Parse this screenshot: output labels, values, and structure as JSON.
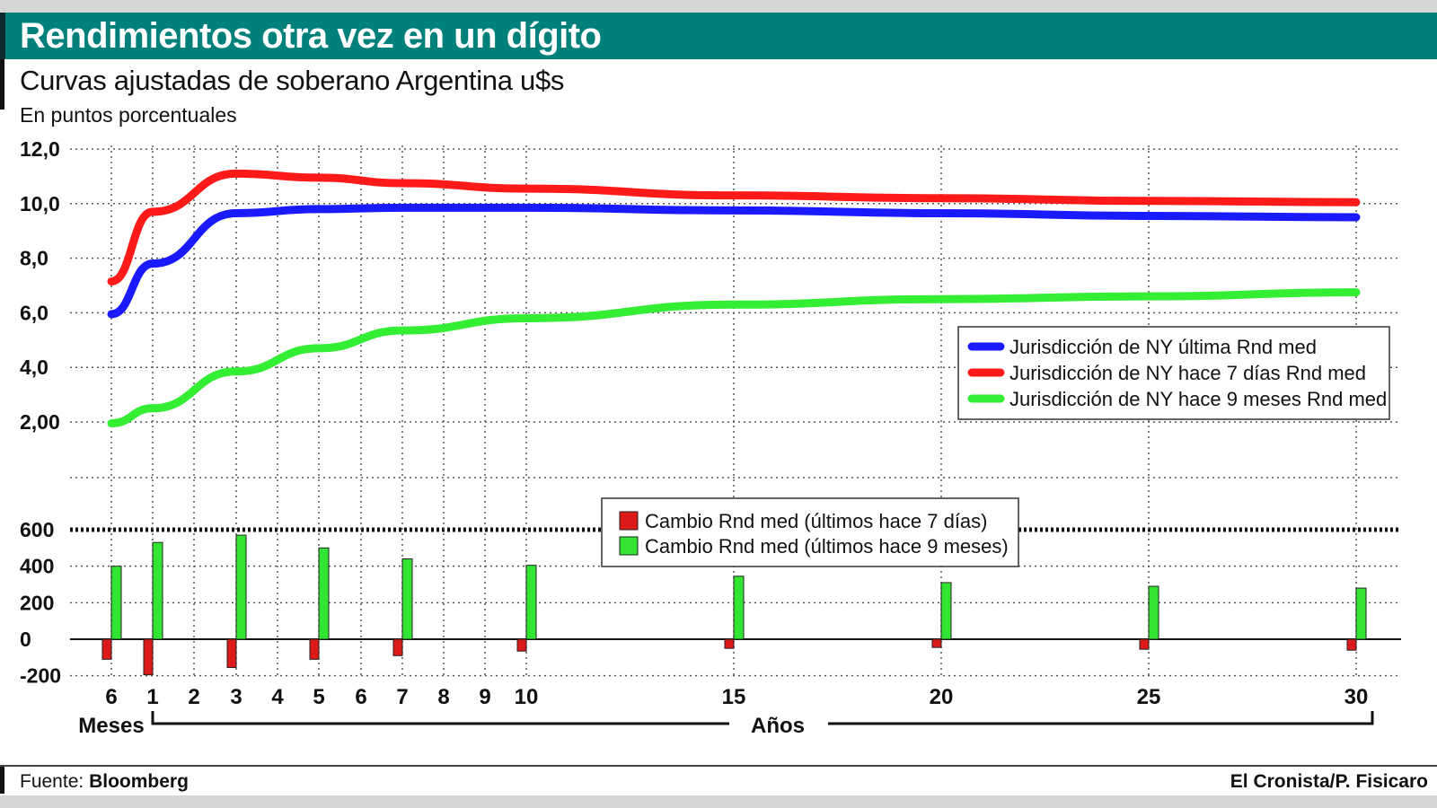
{
  "header": {
    "title": "Rendimientos otra vez en un dígito",
    "subtitle": "Curvas ajustadas de soberano Argentina u$s",
    "units": "En puntos porcentuales"
  },
  "footer": {
    "source_label": "Fuente:",
    "source_name": "Bloomberg",
    "credit": "El Cronista/P. Fisicaro"
  },
  "colors": {
    "title_bar": "#00807a",
    "blue": "#1a1aff",
    "red": "#ff1a1a",
    "green": "#33ee33",
    "bar_red": "#dd1a1a",
    "bar_green": "#33e533"
  },
  "chart_data": [
    {
      "type": "line",
      "x_categories": [
        "6",
        "1",
        "2",
        "3",
        "4",
        "5",
        "6",
        "7",
        "8",
        "9",
        "10",
        "15",
        "20",
        "25",
        "30"
      ],
      "x_group_labels": [
        "Meses",
        "Años"
      ],
      "y_ticks": [
        "12,0",
        "10,0",
        "8,0",
        "6,0",
        "4,0",
        "2,00"
      ],
      "ylim": [
        0,
        12
      ],
      "legend_position": "right",
      "series": [
        {
          "name": "Jurisdicción de NY última Rnd med",
          "color": "#1a1aff",
          "points": [
            [
              "6",
              5.95
            ],
            [
              "1",
              7.8
            ],
            [
              "3",
              9.65
            ],
            [
              "5",
              9.8
            ],
            [
              "7",
              9.85
            ],
            [
              "10",
              9.85
            ],
            [
              "15",
              9.75
            ],
            [
              "20",
              9.65
            ],
            [
              "25",
              9.55
            ],
            [
              "30",
              9.5
            ]
          ]
        },
        {
          "name": "Jurisdicción de NY hace 7 días Rnd med",
          "color": "#ff1a1a",
          "points": [
            [
              "6",
              7.15
            ],
            [
              "1",
              9.7
            ],
            [
              "3",
              11.1
            ],
            [
              "5",
              10.95
            ],
            [
              "7",
              10.75
            ],
            [
              "10",
              10.55
            ],
            [
              "15",
              10.3
            ],
            [
              "20",
              10.2
            ],
            [
              "25",
              10.1
            ],
            [
              "30",
              10.05
            ]
          ]
        },
        {
          "name": "Jurisdicción de NY hace 9 meses Rnd med",
          "color": "#33ee33",
          "points": [
            [
              "6",
              1.95
            ],
            [
              "1",
              2.5
            ],
            [
              "3",
              3.85
            ],
            [
              "5",
              4.7
            ],
            [
              "7",
              5.35
            ],
            [
              "10",
              5.8
            ],
            [
              "15",
              6.3
            ],
            [
              "20",
              6.5
            ],
            [
              "25",
              6.6
            ],
            [
              "30",
              6.75
            ]
          ]
        }
      ]
    },
    {
      "type": "bar",
      "y_ticks": [
        "600",
        "400",
        "200",
        "0",
        "-200"
      ],
      "ylim": [
        -200,
        600
      ],
      "legend_position": "top-center",
      "series": [
        {
          "name": "Cambio Rnd med (últimos hace 7 días)",
          "color": "#dd1a1a",
          "points": [
            [
              "6",
              -110
            ],
            [
              "1",
              -195
            ],
            [
              "3",
              -155
            ],
            [
              "5",
              -110
            ],
            [
              "7",
              -90
            ],
            [
              "10",
              -65
            ],
            [
              "15",
              -50
            ],
            [
              "20",
              -45
            ],
            [
              "25",
              -55
            ],
            [
              "30",
              -60
            ]
          ]
        },
        {
          "name": "Cambio Rnd med (últimos hace 9 meses)",
          "color": "#33e533",
          "points": [
            [
              "6",
              400
            ],
            [
              "1",
              530
            ],
            [
              "3",
              570
            ],
            [
              "5",
              500
            ],
            [
              "7",
              440
            ],
            [
              "10",
              405
            ],
            [
              "15",
              345
            ],
            [
              "20",
              310
            ],
            [
              "25",
              290
            ],
            [
              "30",
              280
            ]
          ]
        }
      ]
    }
  ]
}
